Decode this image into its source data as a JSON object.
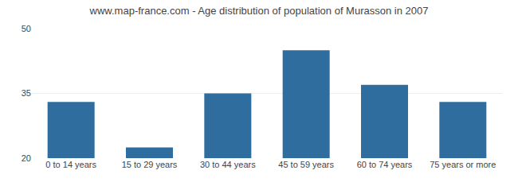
{
  "chart_data": {
    "type": "bar",
    "title": "www.map-france.com - Age distribution of population of Murasson in 2007",
    "categories": [
      "0 to 14 years",
      "15 to 29 years",
      "30 to 44 years",
      "45 to 59 years",
      "60 to 74 years",
      "75 years or more"
    ],
    "values": [
      33,
      22.5,
      35,
      45,
      37,
      33
    ],
    "color": "#2e6d9e",
    "ylim": [
      20,
      50
    ],
    "yticks": [
      20,
      35,
      50
    ],
    "grid": true
  }
}
